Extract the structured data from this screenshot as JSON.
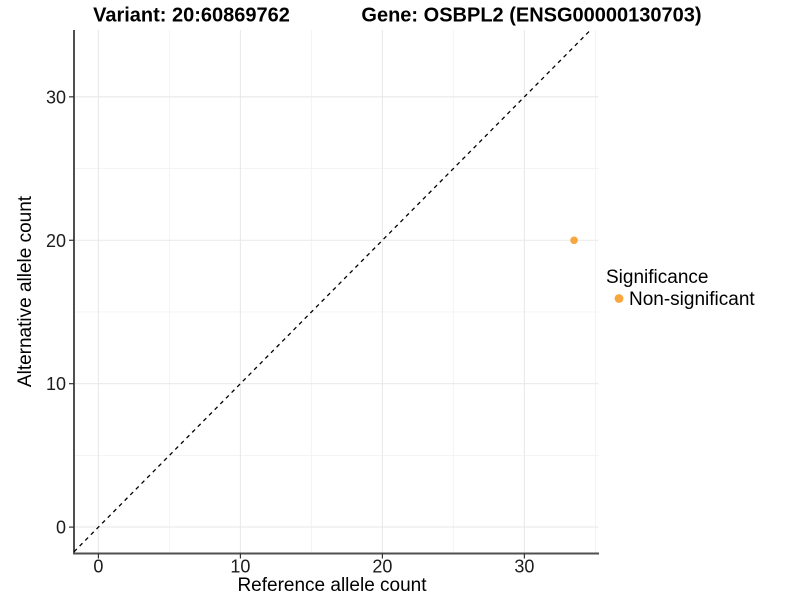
{
  "chart_data": {
    "type": "scatter",
    "titles": {
      "left": "Variant: 20:60869762",
      "right": "Gene: OSBPL2 (ENSG00000130703)"
    },
    "xlabel": "Reference allele count",
    "ylabel": "Alternative allele count",
    "xlim": [
      -1.72,
      35.22
    ],
    "ylim": [
      -1.84,
      34.66
    ],
    "x_major_ticks": [
      0,
      10,
      20,
      30
    ],
    "y_major_ticks": [
      0,
      10,
      20,
      30
    ],
    "x_minor_gridlines": [
      5,
      15,
      25,
      35
    ],
    "y_minor_gridlines": [
      5,
      15,
      25
    ],
    "identity_line": {
      "label": "y = x",
      "style": "dashed",
      "color": "#000000",
      "from": [
        -1.72,
        -1.72
      ],
      "to": [
        34.66,
        34.66
      ]
    },
    "series": [
      {
        "name": "Non-significant",
        "color": "#F9A63F",
        "points": [
          [
            33.5,
            20
          ]
        ]
      }
    ],
    "legend": {
      "title": "Significance",
      "position": "right",
      "items": [
        {
          "label": "Non-significant",
          "color": "#F9A63F"
        }
      ]
    },
    "grid": {
      "major": true,
      "minor": true,
      "major_color": "#E9E9E9",
      "minor_color": "#F3F3F3"
    },
    "axis_color": "#4f4f4f",
    "tick_color": "#333333",
    "background": "#FFFFFF"
  }
}
